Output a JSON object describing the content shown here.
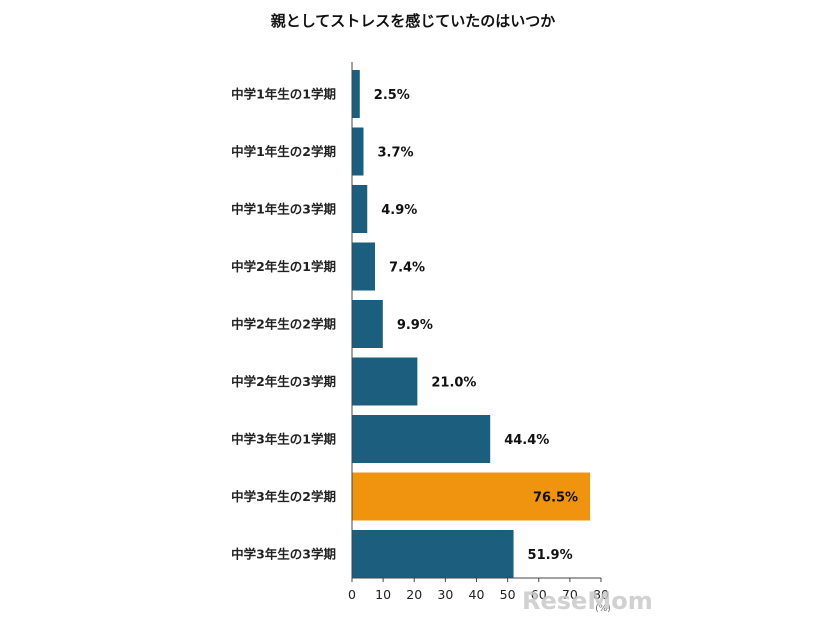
{
  "chart_data": {
    "type": "bar",
    "orientation": "horizontal",
    "title": "親としてストレスを感じていたのはいつか",
    "categories": [
      "中学1年生の1学期",
      "中学1年生の2学期",
      "中学1年生の3学期",
      "中学2年生の1学期",
      "中学2年生の2学期",
      "中学2年生の3学期",
      "中学3年生の1学期",
      "中学3年生の2学期",
      "中学3年生の3学期"
    ],
    "values": [
      2.5,
      3.7,
      4.9,
      7.4,
      9.9,
      21.0,
      44.4,
      76.5,
      51.9
    ],
    "value_labels": [
      "2.5%",
      "3.7%",
      "4.9%",
      "7.4%",
      "9.9%",
      "21.0%",
      "44.4%",
      "76.5%",
      "51.9%"
    ],
    "highlight_index": 7,
    "colors": {
      "bar": "#1b5e7e",
      "highlight": "#f0930f",
      "highlight_label": "#e2a326"
    },
    "xlim": [
      0,
      80
    ],
    "xticks": [
      "0",
      "10",
      "20",
      "30",
      "40",
      "50",
      "60",
      "70",
      "80"
    ],
    "unit_label": "(%)",
    "grid": false
  },
  "watermark": "ReseMom"
}
